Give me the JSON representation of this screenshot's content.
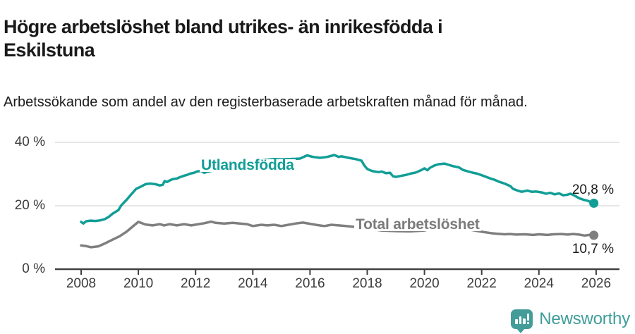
{
  "header": {
    "title": "Högre arbetslöshet bland utrikes- än inrikesfödda i Eskilstuna",
    "subtitle": "Arbetssökande som andel av den registerbaserade arbetskraften månad för månad."
  },
  "footer": {
    "brand": "Newsworthy",
    "brand_icon": "bar-chart-speech-bubble-icon"
  },
  "colors": {
    "series_utlandsfodda": "#119e96",
    "series_total": "#7f7f7f",
    "gridline": "#dedede",
    "axis": "#404040",
    "brand_teal": "#449c99"
  },
  "chart_data": {
    "type": "line",
    "title": "Högre arbetslöshet bland utrikes- än inrikesfödda i Eskilstuna",
    "subtitle": "Arbetssökande som andel av den registerbaserade arbetskraften månad för månad.",
    "xlabel": "",
    "ylabel": "",
    "unit": "%",
    "ylim": [
      0,
      40
    ],
    "xlim": [
      2007.1,
      2026.8
    ],
    "grid": "horizontal-only",
    "legend_position": "inline-labels",
    "y_ticks": [
      {
        "value": 0,
        "label": "0 %"
      },
      {
        "value": 20,
        "label": "20 %"
      },
      {
        "value": 40,
        "label": "40 %"
      }
    ],
    "x_ticks": [
      {
        "value": 2008,
        "label": "2008"
      },
      {
        "value": 2010,
        "label": "2010"
      },
      {
        "value": 2012,
        "label": "2012"
      },
      {
        "value": 2014,
        "label": "2014"
      },
      {
        "value": 2016,
        "label": "2016"
      },
      {
        "value": 2018,
        "label": "2018"
      },
      {
        "value": 2020,
        "label": "2020"
      },
      {
        "value": 2022,
        "label": "2022"
      },
      {
        "value": 2024,
        "label": "2024"
      },
      {
        "value": 2026,
        "label": "2026"
      }
    ],
    "series": [
      {
        "name": "Utlandsfödda",
        "color": "#119e96",
        "end_value": 20.8,
        "end_label": "20,8 %",
        "points": [
          [
            2008.0,
            14.9
          ],
          [
            2008.08,
            14.4
          ],
          [
            2008.17,
            15.1
          ],
          [
            2008.33,
            15.3
          ],
          [
            2008.5,
            15.2
          ],
          [
            2008.67,
            15.4
          ],
          [
            2008.83,
            15.8
          ],
          [
            2008.95,
            16.4
          ],
          [
            2009.1,
            17.5
          ],
          [
            2009.3,
            18.6
          ],
          [
            2009.4,
            20.1
          ],
          [
            2009.6,
            22.0
          ],
          [
            2009.77,
            23.8
          ],
          [
            2009.92,
            25.3
          ],
          [
            2010.1,
            26.1
          ],
          [
            2010.25,
            26.8
          ],
          [
            2010.4,
            27.0
          ],
          [
            2010.6,
            26.8
          ],
          [
            2010.75,
            26.4
          ],
          [
            2010.85,
            26.6
          ],
          [
            2010.92,
            27.8
          ],
          [
            2011.0,
            27.5
          ],
          [
            2011.1,
            28.0
          ],
          [
            2011.2,
            28.4
          ],
          [
            2011.35,
            28.6
          ],
          [
            2011.45,
            29.0
          ],
          [
            2011.6,
            29.5
          ],
          [
            2011.7,
            29.7
          ],
          [
            2011.8,
            30.1
          ],
          [
            2011.95,
            30.4
          ],
          [
            2012.05,
            30.8
          ],
          [
            2012.2,
            31.0
          ],
          [
            2012.3,
            30.4
          ],
          [
            2012.4,
            30.7
          ],
          [
            2012.55,
            31.0
          ],
          [
            2012.75,
            31.3
          ],
          [
            2013.0,
            31.7
          ],
          [
            2013.25,
            32.1
          ],
          [
            2013.5,
            32.6
          ],
          [
            2013.75,
            33.2
          ],
          [
            2014.0,
            33.8
          ],
          [
            2014.25,
            34.2
          ],
          [
            2014.5,
            34.5
          ],
          [
            2014.75,
            34.7
          ],
          [
            2015.0,
            34.6
          ],
          [
            2015.25,
            34.7
          ],
          [
            2015.5,
            34.8
          ],
          [
            2015.65,
            34.9
          ],
          [
            2015.9,
            35.9
          ],
          [
            2016.1,
            35.4
          ],
          [
            2016.35,
            35.1
          ],
          [
            2016.6,
            35.4
          ],
          [
            2016.85,
            36.0
          ],
          [
            2017.0,
            35.4
          ],
          [
            2017.1,
            35.6
          ],
          [
            2017.35,
            35.1
          ],
          [
            2017.6,
            34.7
          ],
          [
            2017.8,
            34.2
          ],
          [
            2017.9,
            32.7
          ],
          [
            2018.0,
            31.6
          ],
          [
            2018.1,
            31.2
          ],
          [
            2018.2,
            30.9
          ],
          [
            2018.4,
            30.6
          ],
          [
            2018.5,
            30.8
          ],
          [
            2018.65,
            30.3
          ],
          [
            2018.8,
            30.4
          ],
          [
            2018.9,
            29.3
          ],
          [
            2019.0,
            29.1
          ],
          [
            2019.1,
            29.3
          ],
          [
            2019.35,
            29.7
          ],
          [
            2019.5,
            30.1
          ],
          [
            2019.7,
            30.5
          ],
          [
            2019.9,
            31.3
          ],
          [
            2020.0,
            31.8
          ],
          [
            2020.1,
            31.2
          ],
          [
            2020.2,
            32.0
          ],
          [
            2020.35,
            32.7
          ],
          [
            2020.5,
            33.1
          ],
          [
            2020.7,
            33.3
          ],
          [
            2020.85,
            32.9
          ],
          [
            2021.0,
            32.5
          ],
          [
            2021.2,
            32.1
          ],
          [
            2021.35,
            31.3
          ],
          [
            2021.5,
            30.9
          ],
          [
            2021.7,
            30.4
          ],
          [
            2021.85,
            30.1
          ],
          [
            2022.1,
            29.3
          ],
          [
            2022.3,
            28.6
          ],
          [
            2022.45,
            28.2
          ],
          [
            2022.6,
            27.6
          ],
          [
            2022.8,
            27.0
          ],
          [
            2023.0,
            26.2
          ],
          [
            2023.1,
            25.3
          ],
          [
            2023.25,
            24.8
          ],
          [
            2023.4,
            24.4
          ],
          [
            2023.6,
            24.8
          ],
          [
            2023.75,
            24.4
          ],
          [
            2023.9,
            24.5
          ],
          [
            2024.1,
            24.2
          ],
          [
            2024.25,
            23.8
          ],
          [
            2024.4,
            24.1
          ],
          [
            2024.55,
            23.6
          ],
          [
            2024.7,
            23.9
          ],
          [
            2024.85,
            23.3
          ],
          [
            2025.0,
            23.5
          ],
          [
            2025.1,
            23.8
          ],
          [
            2025.25,
            23.2
          ],
          [
            2025.4,
            22.4
          ],
          [
            2025.55,
            21.9
          ],
          [
            2025.7,
            21.6
          ],
          [
            2025.8,
            21.2
          ],
          [
            2025.92,
            20.8
          ]
        ]
      },
      {
        "name": "Total arbetslöshet",
        "color": "#7f7f7f",
        "end_value": 10.7,
        "end_label": "10,7 %",
        "points": [
          [
            2008.0,
            7.5
          ],
          [
            2008.15,
            7.3
          ],
          [
            2008.35,
            6.9
          ],
          [
            2008.6,
            7.2
          ],
          [
            2008.85,
            8.2
          ],
          [
            2009.1,
            9.3
          ],
          [
            2009.35,
            10.4
          ],
          [
            2009.6,
            11.9
          ],
          [
            2009.85,
            13.8
          ],
          [
            2010.0,
            14.9
          ],
          [
            2010.25,
            14.1
          ],
          [
            2010.5,
            13.8
          ],
          [
            2010.75,
            14.2
          ],
          [
            2010.9,
            13.8
          ],
          [
            2011.1,
            14.2
          ],
          [
            2011.35,
            13.8
          ],
          [
            2011.6,
            14.2
          ],
          [
            2011.85,
            13.8
          ],
          [
            2012.1,
            14.2
          ],
          [
            2012.3,
            14.5
          ],
          [
            2012.55,
            15.0
          ],
          [
            2012.7,
            14.6
          ],
          [
            2013.0,
            14.4
          ],
          [
            2013.3,
            14.6
          ],
          [
            2013.55,
            14.4
          ],
          [
            2013.8,
            14.2
          ],
          [
            2014.0,
            13.6
          ],
          [
            2014.3,
            14.0
          ],
          [
            2014.5,
            13.8
          ],
          [
            2014.75,
            14.0
          ],
          [
            2015.0,
            13.6
          ],
          [
            2015.3,
            14.1
          ],
          [
            2015.5,
            14.4
          ],
          [
            2015.75,
            14.7
          ],
          [
            2016.0,
            14.3
          ],
          [
            2016.25,
            13.9
          ],
          [
            2016.5,
            13.6
          ],
          [
            2016.75,
            14.0
          ],
          [
            2017.0,
            13.8
          ],
          [
            2017.25,
            13.6
          ],
          [
            2017.5,
            13.4
          ],
          [
            2018.0,
            12.8
          ],
          [
            2018.5,
            12.2
          ],
          [
            2019.0,
            12.0
          ],
          [
            2019.5,
            11.9
          ],
          [
            2020.0,
            12.2
          ],
          [
            2020.5,
            13.2
          ],
          [
            2020.8,
            13.4
          ],
          [
            2021.0,
            13.2
          ],
          [
            2021.5,
            12.6
          ],
          [
            2022.0,
            11.8
          ],
          [
            2022.3,
            11.4
          ],
          [
            2022.5,
            11.2
          ],
          [
            2022.8,
            11.0
          ],
          [
            2023.0,
            11.1
          ],
          [
            2023.2,
            10.9
          ],
          [
            2023.5,
            11.0
          ],
          [
            2023.8,
            10.8
          ],
          [
            2024.0,
            11.0
          ],
          [
            2024.3,
            10.8
          ],
          [
            2024.5,
            11.0
          ],
          [
            2024.8,
            11.1
          ],
          [
            2025.0,
            10.9
          ],
          [
            2025.2,
            11.1
          ],
          [
            2025.4,
            10.9
          ],
          [
            2025.6,
            10.6
          ],
          [
            2025.75,
            10.8
          ],
          [
            2025.92,
            10.7
          ]
        ]
      }
    ]
  }
}
